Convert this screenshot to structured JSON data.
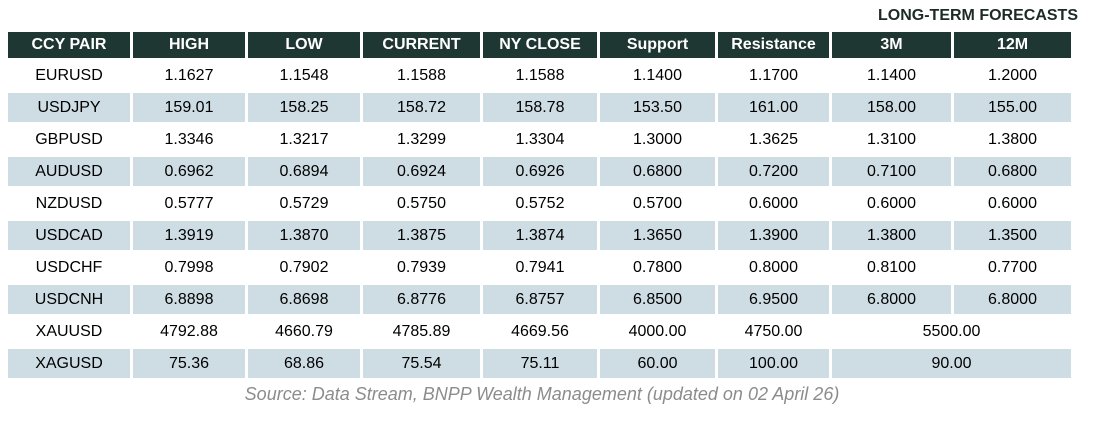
{
  "forecast_label": "LONG-TERM FORECASTS",
  "source_note": "Source: Data Stream, BNPP Wealth Management (updated on 02 April 26)",
  "chart_data": {
    "type": "table",
    "title": "LONG-TERM FORECASTS",
    "columns": [
      "CCY PAIR",
      "HIGH",
      "LOW",
      "CURRENT",
      "NY CLOSE",
      "Support",
      "Resistance",
      "3M",
      "12M"
    ],
    "rows": [
      {
        "cells": [
          "EURUSD",
          "1.1627",
          "1.1548",
          "1.1588",
          "1.1588",
          "1.1400",
          "1.1700",
          "1.1400",
          "1.2000"
        ]
      },
      {
        "cells": [
          "USDJPY",
          "159.01",
          "158.25",
          "158.72",
          "158.78",
          "153.50",
          "161.00",
          "158.00",
          "155.00"
        ]
      },
      {
        "cells": [
          "GBPUSD",
          "1.3346",
          "1.3217",
          "1.3299",
          "1.3304",
          "1.3000",
          "1.3625",
          "1.3100",
          "1.3800"
        ]
      },
      {
        "cells": [
          "AUDUSD",
          "0.6962",
          "0.6894",
          "0.6924",
          "0.6926",
          "0.6800",
          "0.7200",
          "0.7100",
          "0.6800"
        ]
      },
      {
        "cells": [
          "NZDUSD",
          "0.5777",
          "0.5729",
          "0.5750",
          "0.5752",
          "0.5700",
          "0.6000",
          "0.6000",
          "0.6000"
        ]
      },
      {
        "cells": [
          "USDCAD",
          "1.3919",
          "1.3870",
          "1.3875",
          "1.3874",
          "1.3650",
          "1.3900",
          "1.3800",
          "1.3500"
        ]
      },
      {
        "cells": [
          "USDCHF",
          "0.7998",
          "0.7902",
          "0.7939",
          "0.7941",
          "0.7800",
          "0.8000",
          "0.8100",
          "0.7700"
        ]
      },
      {
        "cells": [
          "USDCNH",
          "6.8898",
          "6.8698",
          "6.8776",
          "6.8757",
          "6.8500",
          "6.9500",
          "6.8000",
          "6.8000"
        ]
      },
      {
        "cells": [
          "XAUUSD",
          "4792.88",
          "4660.79",
          "4785.89",
          "4669.56",
          "4000.00",
          "4750.00"
        ],
        "merged_forecast": "5500.00"
      },
      {
        "cells": [
          "XAGUSD",
          "75.36",
          "68.86",
          "75.54",
          "75.11",
          "60.00",
          "100.00"
        ],
        "merged_forecast": "90.00"
      }
    ],
    "layout_notes": "3M and 12M forecast columns are merged into a single centered value for XAUUSD and XAGUSD rows; rows alternate white and light blue backgrounds"
  },
  "colors": {
    "header_bg": "#1f3733",
    "header_text": "#ffffff",
    "row_alt_bg": "#cedde4",
    "row_bg": "#ffffff",
    "cell_text": "#000000",
    "label_text": "#1c2b27",
    "source_text": "#8c8c8c"
  }
}
